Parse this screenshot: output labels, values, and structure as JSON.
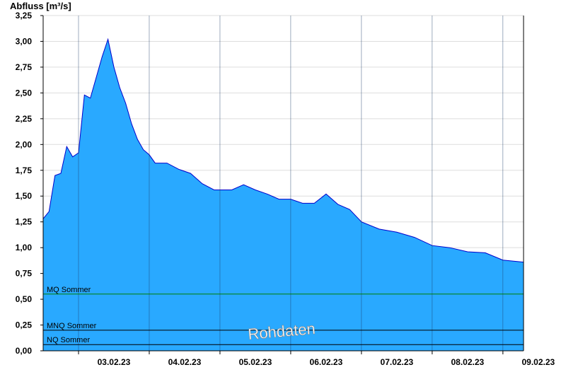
{
  "chart_data": {
    "type": "area",
    "ylabel": "Abfluss [m³/s]",
    "watermark": "Rohdaten",
    "ylim": [
      0,
      3.25
    ],
    "y_ticks": [
      "0,00",
      "0,25",
      "0,50",
      "0,75",
      "1,00",
      "1,25",
      "1,50",
      "1,75",
      "2,00",
      "2,25",
      "2,50",
      "2,75",
      "3,00",
      "3,25"
    ],
    "x_ticks": [
      "03.02.23",
      "04.02.23",
      "05.02.23",
      "06.02.23",
      "07.02.23",
      "08.02.23",
      "09.02.23"
    ],
    "grid": true,
    "colors": {
      "fill": "#29a9ff",
      "line": "#0000cc",
      "mq": "#008000",
      "ref": "#000000"
    },
    "reference_lines": [
      {
        "name": "MQ Sommer",
        "value": 0.55
      },
      {
        "name": "MNQ Sommer",
        "value": 0.2
      },
      {
        "name": "NQ Sommer",
        "value": 0.06
      }
    ],
    "x_start": "02.02.23 12:00",
    "x_end": "09.02.23 07:00",
    "series": [
      {
        "x": [
          "02.02.23 12:00",
          "02.02.23 14:00",
          "02.02.23 16:00",
          "02.02.23 18:00",
          "02.02.23 20:00",
          "02.02.23 22:00",
          "03.02.23 00:00",
          "03.02.23 02:00",
          "03.02.23 04:00",
          "03.02.23 06:00",
          "03.02.23 08:00",
          "03.02.23 10:00",
          "03.02.23 12:00",
          "03.02.23 14:00",
          "03.02.23 16:00",
          "03.02.23 18:00",
          "03.02.23 20:00",
          "03.02.23 22:00",
          "04.02.23 00:00",
          "04.02.23 02:00",
          "04.02.23 04:00",
          "04.02.23 06:00",
          "04.02.23 10:00",
          "04.02.23 14:00",
          "04.02.23 18:00",
          "04.02.23 22:00",
          "05.02.23 00:00",
          "05.02.23 04:00",
          "05.02.23 08:00",
          "05.02.23 12:00",
          "05.02.23 16:00",
          "05.02.23 20:00",
          "06.02.23 00:00",
          "06.02.23 04:00",
          "06.02.23 08:00",
          "06.02.23 12:00",
          "06.02.23 16:00",
          "06.02.23 20:00",
          "07.02.23 00:00",
          "07.02.23 06:00",
          "07.02.23 12:00",
          "07.02.23 18:00",
          "08.02.23 00:00",
          "08.02.23 06:00",
          "08.02.23 12:00",
          "08.02.23 18:00",
          "09.02.23 00:00",
          "09.02.23 07:00"
        ],
        "values": [
          1.28,
          1.35,
          1.7,
          1.72,
          1.98,
          1.88,
          1.92,
          2.48,
          2.45,
          2.65,
          2.85,
          3.02,
          2.75,
          2.55,
          2.4,
          2.2,
          2.05,
          1.95,
          1.9,
          1.82,
          1.82,
          1.82,
          1.76,
          1.72,
          1.62,
          1.56,
          1.56,
          1.56,
          1.61,
          1.56,
          1.52,
          1.47,
          1.47,
          1.43,
          1.43,
          1.52,
          1.42,
          1.37,
          1.25,
          1.18,
          1.15,
          1.1,
          1.02,
          1.0,
          0.96,
          0.95,
          0.88,
          0.86
        ]
      }
    ]
  }
}
